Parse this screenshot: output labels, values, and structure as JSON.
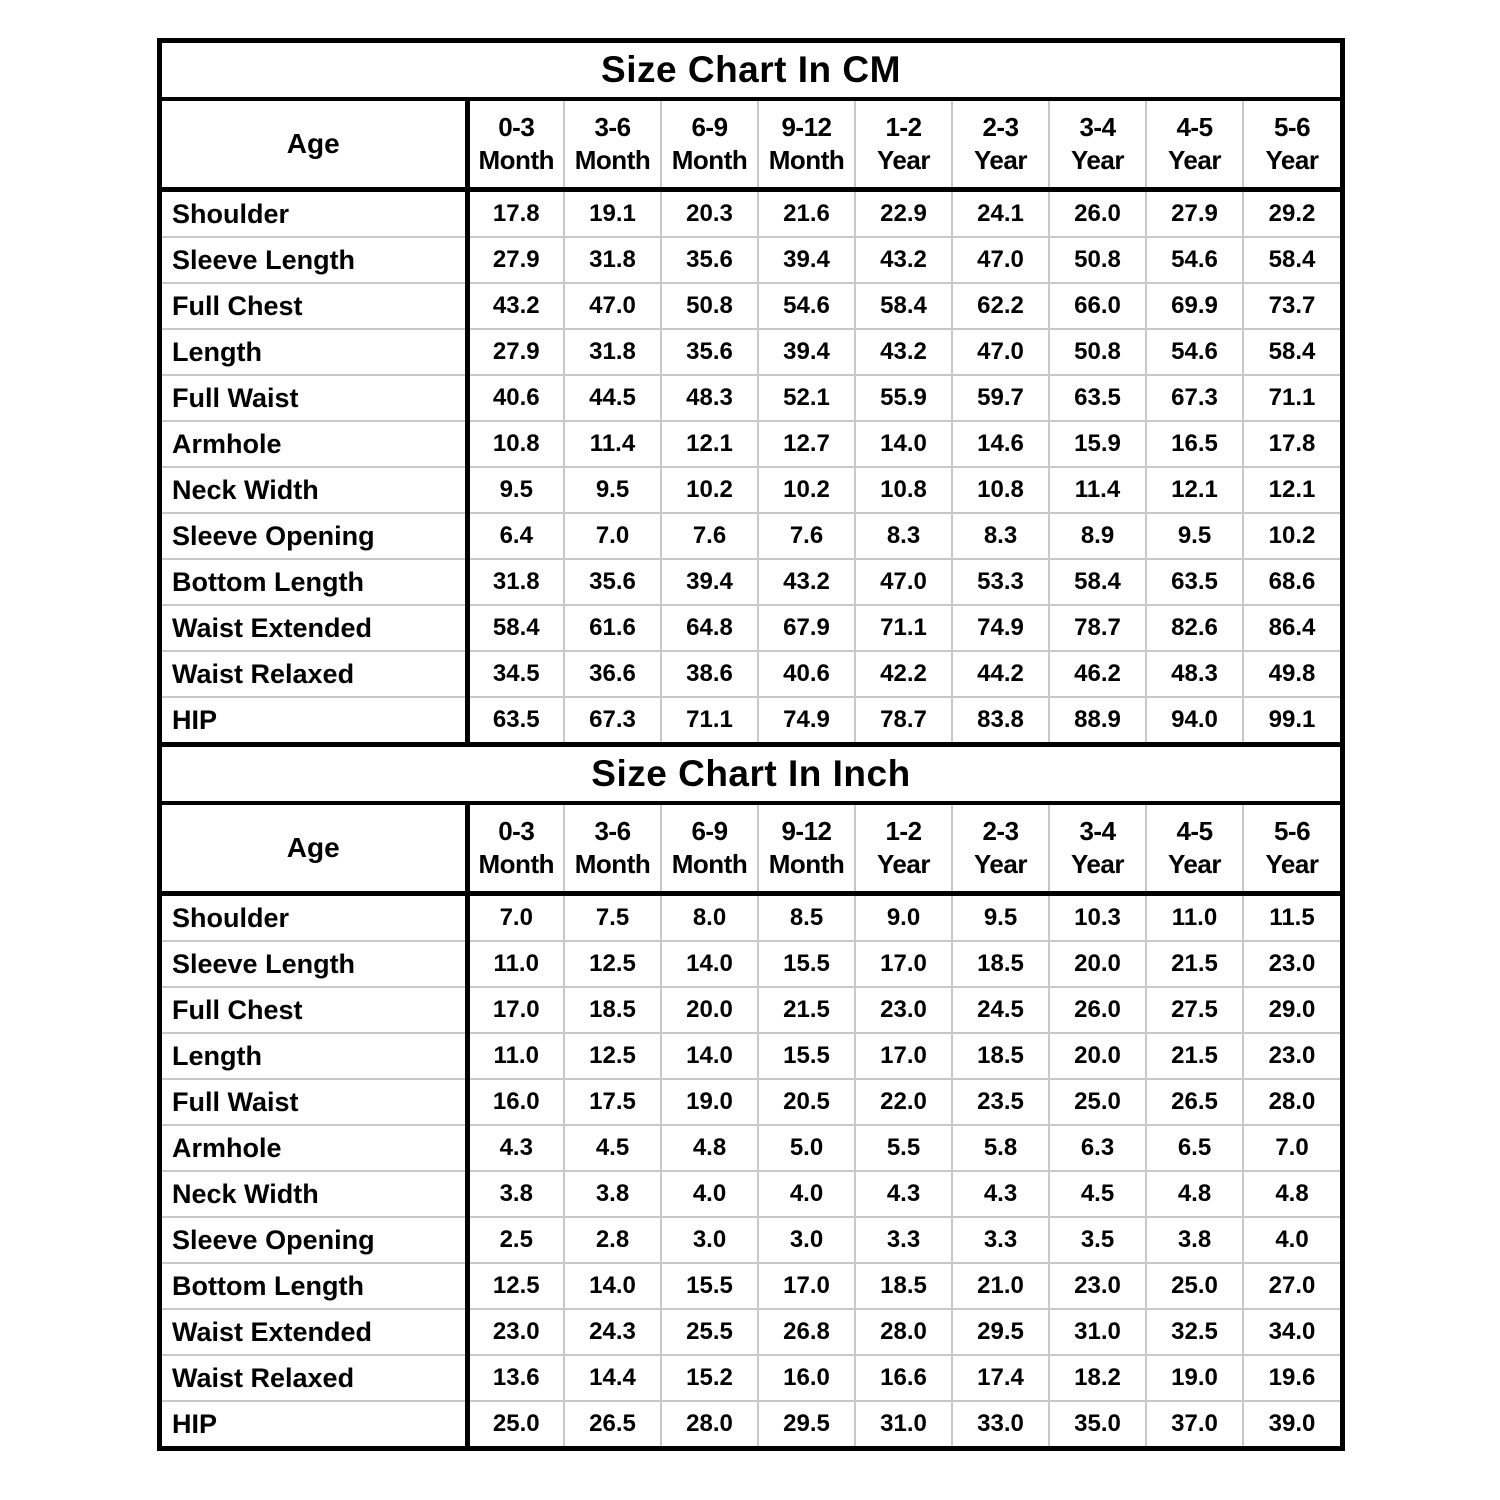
{
  "colors": {
    "background": "#ffffff",
    "text": "#000000",
    "border": "#000000",
    "gridline": "#c8c8c8"
  },
  "chart_data": [
    {
      "type": "table",
      "title": "Size Chart In CM",
      "unit": "cm",
      "corner_header": "Age",
      "columns": [
        {
          "range": "0-3",
          "unit": "Month"
        },
        {
          "range": "3-6",
          "unit": "Month"
        },
        {
          "range": "6-9",
          "unit": "Month"
        },
        {
          "range": "9-12",
          "unit": "Month"
        },
        {
          "range": "1-2",
          "unit": "Year"
        },
        {
          "range": "2-3",
          "unit": "Year"
        },
        {
          "range": "3-4",
          "unit": "Year"
        },
        {
          "range": "4-5",
          "unit": "Year"
        },
        {
          "range": "5-6",
          "unit": "Year"
        }
      ],
      "rows": [
        {
          "label": "Shoulder",
          "values": [
            "17.8",
            "19.1",
            "20.3",
            "21.6",
            "22.9",
            "24.1",
            "26.0",
            "27.9",
            "29.2"
          ]
        },
        {
          "label": "Sleeve Length",
          "values": [
            "27.9",
            "31.8",
            "35.6",
            "39.4",
            "43.2",
            "47.0",
            "50.8",
            "54.6",
            "58.4"
          ]
        },
        {
          "label": "Full Chest",
          "values": [
            "43.2",
            "47.0",
            "50.8",
            "54.6",
            "58.4",
            "62.2",
            "66.0",
            "69.9",
            "73.7"
          ]
        },
        {
          "label": "Length",
          "values": [
            "27.9",
            "31.8",
            "35.6",
            "39.4",
            "43.2",
            "47.0",
            "50.8",
            "54.6",
            "58.4"
          ]
        },
        {
          "label": "Full Waist",
          "values": [
            "40.6",
            "44.5",
            "48.3",
            "52.1",
            "55.9",
            "59.7",
            "63.5",
            "67.3",
            "71.1"
          ]
        },
        {
          "label": "Armhole",
          "values": [
            "10.8",
            "11.4",
            "12.1",
            "12.7",
            "14.0",
            "14.6",
            "15.9",
            "16.5",
            "17.8"
          ]
        },
        {
          "label": "Neck Width",
          "values": [
            "9.5",
            "9.5",
            "10.2",
            "10.2",
            "10.8",
            "10.8",
            "11.4",
            "12.1",
            "12.1"
          ]
        },
        {
          "label": "Sleeve Opening",
          "values": [
            "6.4",
            "7.0",
            "7.6",
            "7.6",
            "8.3",
            "8.3",
            "8.9",
            "9.5",
            "10.2"
          ]
        },
        {
          "label": "Bottom Length",
          "values": [
            "31.8",
            "35.6",
            "39.4",
            "43.2",
            "47.0",
            "53.3",
            "58.4",
            "63.5",
            "68.6"
          ]
        },
        {
          "label": "Waist Extended",
          "values": [
            "58.4",
            "61.6",
            "64.8",
            "67.9",
            "71.1",
            "74.9",
            "78.7",
            "82.6",
            "86.4"
          ]
        },
        {
          "label": "Waist Relaxed",
          "values": [
            "34.5",
            "36.6",
            "38.6",
            "40.6",
            "42.2",
            "44.2",
            "46.2",
            "48.3",
            "49.8"
          ]
        },
        {
          "label": "HIP",
          "values": [
            "63.5",
            "67.3",
            "71.1",
            "74.9",
            "78.7",
            "83.8",
            "88.9",
            "94.0",
            "99.1"
          ]
        }
      ]
    },
    {
      "type": "table",
      "title": "Size Chart In Inch",
      "unit": "inch",
      "corner_header": "Age",
      "columns": [
        {
          "range": "0-3",
          "unit": "Month"
        },
        {
          "range": "3-6",
          "unit": "Month"
        },
        {
          "range": "6-9",
          "unit": "Month"
        },
        {
          "range": "9-12",
          "unit": "Month"
        },
        {
          "range": "1-2",
          "unit": "Year"
        },
        {
          "range": "2-3",
          "unit": "Year"
        },
        {
          "range": "3-4",
          "unit": "Year"
        },
        {
          "range": "4-5",
          "unit": "Year"
        },
        {
          "range": "5-6",
          "unit": "Year"
        }
      ],
      "rows": [
        {
          "label": "Shoulder",
          "values": [
            "7.0",
            "7.5",
            "8.0",
            "8.5",
            "9.0",
            "9.5",
            "10.3",
            "11.0",
            "11.5"
          ]
        },
        {
          "label": "Sleeve Length",
          "values": [
            "11.0",
            "12.5",
            "14.0",
            "15.5",
            "17.0",
            "18.5",
            "20.0",
            "21.5",
            "23.0"
          ]
        },
        {
          "label": "Full Chest",
          "values": [
            "17.0",
            "18.5",
            "20.0",
            "21.5",
            "23.0",
            "24.5",
            "26.0",
            "27.5",
            "29.0"
          ]
        },
        {
          "label": "Length",
          "values": [
            "11.0",
            "12.5",
            "14.0",
            "15.5",
            "17.0",
            "18.5",
            "20.0",
            "21.5",
            "23.0"
          ]
        },
        {
          "label": "Full Waist",
          "values": [
            "16.0",
            "17.5",
            "19.0",
            "20.5",
            "22.0",
            "23.5",
            "25.0",
            "26.5",
            "28.0"
          ]
        },
        {
          "label": "Armhole",
          "values": [
            "4.3",
            "4.5",
            "4.8",
            "5.0",
            "5.5",
            "5.8",
            "6.3",
            "6.5",
            "7.0"
          ]
        },
        {
          "label": "Neck Width",
          "values": [
            "3.8",
            "3.8",
            "4.0",
            "4.0",
            "4.3",
            "4.3",
            "4.5",
            "4.8",
            "4.8"
          ]
        },
        {
          "label": "Sleeve Opening",
          "values": [
            "2.5",
            "2.8",
            "3.0",
            "3.0",
            "3.3",
            "3.3",
            "3.5",
            "3.8",
            "4.0"
          ]
        },
        {
          "label": "Bottom Length",
          "values": [
            "12.5",
            "14.0",
            "15.5",
            "17.0",
            "18.5",
            "21.0",
            "23.0",
            "25.0",
            "27.0"
          ]
        },
        {
          "label": "Waist Extended",
          "values": [
            "23.0",
            "24.3",
            "25.5",
            "26.8",
            "28.0",
            "29.5",
            "31.0",
            "32.5",
            "34.0"
          ]
        },
        {
          "label": "Waist Relaxed",
          "values": [
            "13.6",
            "14.4",
            "15.2",
            "16.0",
            "16.6",
            "17.4",
            "18.2",
            "19.0",
            "19.6"
          ]
        },
        {
          "label": "HIP",
          "values": [
            "25.0",
            "26.5",
            "28.0",
            "29.5",
            "31.0",
            "33.0",
            "35.0",
            "37.0",
            "39.0"
          ]
        }
      ]
    }
  ]
}
